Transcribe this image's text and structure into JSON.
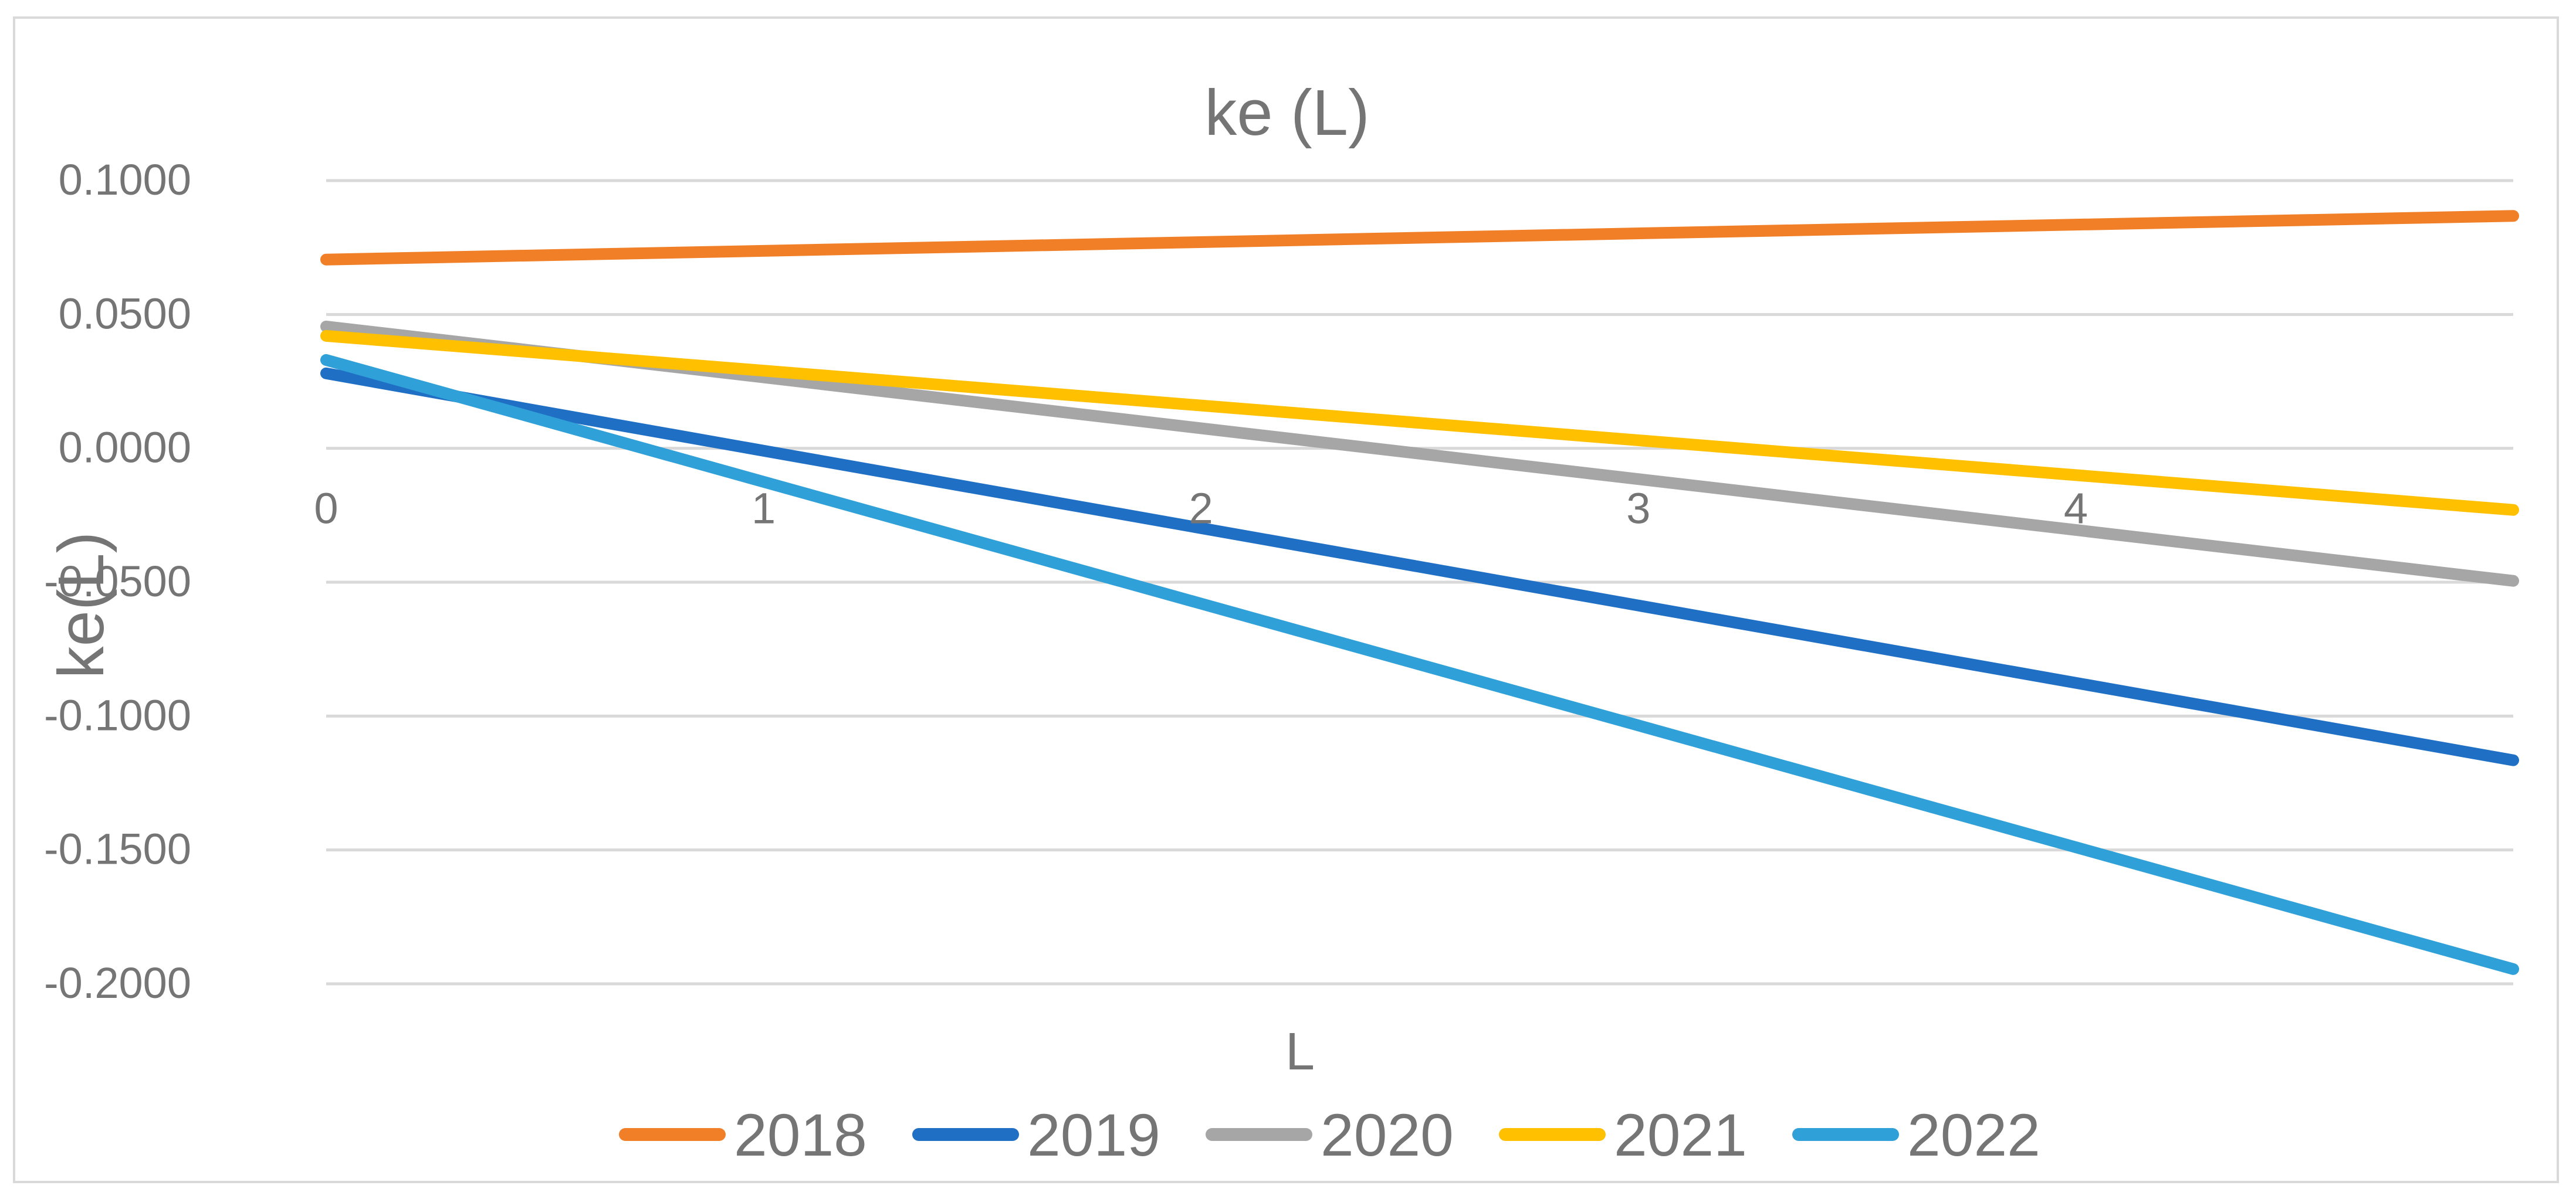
{
  "chart_data": {
    "type": "line",
    "title": "ke (L)",
    "xlabel": "L",
    "ylabel": "ke(L)",
    "x": [
      0,
      5
    ],
    "xlim": [
      0,
      5
    ],
    "x_ticks": [
      "0",
      "1",
      "2",
      "3",
      "4"
    ],
    "ylim": [
      -0.2,
      0.1
    ],
    "y_ticks": [
      "0.1000",
      "0.0500",
      "0.0000",
      "-0.0500",
      "-0.1000",
      "-0.1500",
      "-0.2000"
    ],
    "grid": true,
    "legend_position": "bottom",
    "series": [
      {
        "name": "2018",
        "color": "#F07F28",
        "values": [
          0.0705,
          0.0868
        ]
      },
      {
        "name": "2019",
        "color": "#1F6FC4",
        "values": [
          0.028,
          -0.1165
        ]
      },
      {
        "name": "2020",
        "color": "#A6A6A6",
        "values": [
          0.0455,
          -0.0495
        ]
      },
      {
        "name": "2021",
        "color": "#FFC000",
        "values": [
          0.042,
          -0.023
        ]
      },
      {
        "name": "2022",
        "color": "#2FA0D8",
        "values": [
          0.033,
          -0.1945
        ]
      }
    ]
  }
}
